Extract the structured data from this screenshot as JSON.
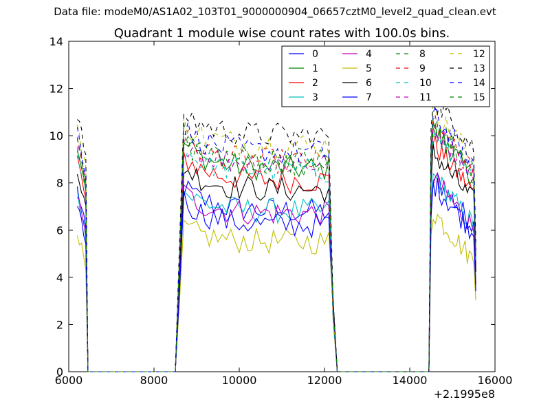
{
  "figure": {
    "supertitle": "Data file: modeM0/AS1A02_103T01_9000000904_06657cztM0_level2_quad_clean.evt",
    "offset_label": "+2.1995e8"
  },
  "chart_data": {
    "type": "line",
    "title": "Quadrant 1 module wise count rates with 100.0s bins.",
    "xlabel": "",
    "ylabel": "",
    "xlim": [
      6000,
      16000
    ],
    "ylim": [
      0,
      14
    ],
    "xticks": [
      6000,
      8000,
      10000,
      12000,
      14000,
      16000
    ],
    "yticks": [
      0,
      2,
      4,
      6,
      8,
      10,
      12,
      14
    ],
    "x_offset_text": "+2.1995e8",
    "grid": false,
    "legend_position": "top-right",
    "legend_columns": 4,
    "series": [
      {
        "name": "0",
        "color": "#0000ff",
        "dash": "solid",
        "base": 6.8,
        "s1": 1.2,
        "s2": 1.0
      },
      {
        "name": "1",
        "color": "#008000",
        "dash": "solid",
        "base": 8.6,
        "s1": 1.3,
        "s2": 1.2
      },
      {
        "name": "2",
        "color": "#ff0000",
        "dash": "solid",
        "base": 8.1,
        "s1": 1.2,
        "s2": 1.1
      },
      {
        "name": "3",
        "color": "#00bfbf",
        "dash": "solid",
        "base": 6.8,
        "s1": 1.0,
        "s2": 1.0
      },
      {
        "name": "4",
        "color": "#bf00bf",
        "dash": "solid",
        "base": 6.7,
        "s1": 1.0,
        "s2": 1.0
      },
      {
        "name": "5",
        "color": "#bfbf00",
        "dash": "solid",
        "base": 5.5,
        "s1": 0.7,
        "s2": 0.8
      },
      {
        "name": "6",
        "color": "#000000",
        "dash": "solid",
        "base": 7.7,
        "s1": 1.2,
        "s2": 1.1
      },
      {
        "name": "7",
        "color": "#0000ff",
        "dash": "solid",
        "base": 6.2,
        "s1": 1.3,
        "s2": 1.3
      },
      {
        "name": "8",
        "color": "#008000",
        "dash": "dashed",
        "base": 8.7,
        "s1": 1.2,
        "s2": 1.1
      },
      {
        "name": "9",
        "color": "#ff0000",
        "dash": "dashed",
        "base": 8.9,
        "s1": 1.2,
        "s2": 1.1
      },
      {
        "name": "10",
        "color": "#00bfbf",
        "dash": "dashed",
        "base": 8.5,
        "s1": 1.1,
        "s2": 1.1
      },
      {
        "name": "11",
        "color": "#bf00bf",
        "dash": "dashed",
        "base": 8.8,
        "s1": 1.2,
        "s2": 1.1
      },
      {
        "name": "12",
        "color": "#bfbf00",
        "dash": "dashed",
        "base": 9.6,
        "s1": 1.1,
        "s2": 1.0
      },
      {
        "name": "13",
        "color": "#000000",
        "dash": "dashed",
        "base": 10.0,
        "s1": 1.2,
        "s2": 1.1
      },
      {
        "name": "14",
        "color": "#0000ff",
        "dash": "dashed",
        "base": 9.3,
        "s1": 1.2,
        "s2": 1.1
      },
      {
        "name": "15",
        "color": "#008000",
        "dash": "dashed",
        "base": 9.0,
        "s1": 1.2,
        "s2": 1.1
      }
    ],
    "segments": [
      {
        "start": 6200,
        "end": 6400,
        "zero_after": 8500
      },
      {
        "start": 8600,
        "end": 12100,
        "zero_after": 14450
      },
      {
        "start": 14500,
        "end": 15500,
        "zero_after": null
      }
    ]
  }
}
